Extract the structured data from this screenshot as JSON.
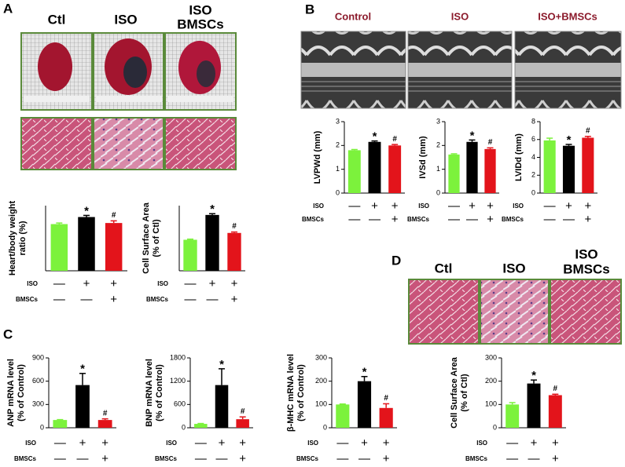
{
  "panels": [
    "A",
    "B",
    "C",
    "D"
  ],
  "image_labels": {
    "A": [
      "Ctl",
      "ISO",
      "ISO",
      "BMSCs"
    ],
    "B": [
      "Control",
      "ISO",
      "ISO+BMSCs"
    ],
    "D": [
      "Ctl",
      "ISO",
      "ISO",
      "BMSCs"
    ]
  },
  "chart_data": [
    {
      "type": "bar",
      "ylabel": [
        "Heart/body weight",
        "ratio (%)"
      ],
      "ylim": [
        0,
        6
      ],
      "values": [
        4.3,
        4.95,
        4.4
      ],
      "errors": [
        0.1,
        0.15,
        0.2
      ],
      "colors": [
        "#7cf23c",
        "#000000",
        "#e3141b"
      ],
      "bar_labels": [
        null,
        "*",
        "#"
      ],
      "conditions": [
        {
          "name": "ISO",
          "signs": [
            "—",
            "+",
            "+"
          ]
        },
        {
          "name": "BMSCs",
          "signs": [
            "—",
            "—",
            "+"
          ]
        }
      ]
    },
    {
      "type": "bar",
      "ylabel": [
        "Cell Surface Area",
        "(% of Ctl)"
      ],
      "ylim": [
        0,
        210
      ],
      "values": [
        100,
        180,
        122
      ],
      "errors": [
        2,
        4,
        3
      ],
      "colors": [
        "#7cf23c",
        "#000000",
        "#e3141b"
      ],
      "bar_labels": [
        null,
        "*",
        "#"
      ],
      "conditions": [
        {
          "name": "ISO",
          "signs": [
            "—",
            "+",
            "+"
          ]
        },
        {
          "name": "BMSCs",
          "signs": [
            "—",
            "—",
            "+"
          ]
        }
      ]
    },
    {
      "type": "bar",
      "ylabel": [
        "LVPWd (mm)"
      ],
      "ylim": [
        0,
        3
      ],
      "yticks": [
        0,
        1,
        2,
        3
      ],
      "values": [
        1.8,
        2.15,
        2.0
      ],
      "errors": [
        0.03,
        0.04,
        0.04
      ],
      "colors": [
        "#7cf23c",
        "#000000",
        "#e3141b"
      ],
      "bar_labels": [
        null,
        "*",
        "#"
      ],
      "conditions": [
        {
          "name": "ISO",
          "signs": [
            "—",
            "+",
            "+"
          ]
        },
        {
          "name": "BMSCs",
          "signs": [
            "—",
            "—",
            "+"
          ]
        }
      ]
    },
    {
      "type": "bar",
      "ylabel": [
        "IVSd (mm)"
      ],
      "ylim": [
        0,
        3
      ],
      "yticks": [
        0,
        1,
        2,
        3
      ],
      "values": [
        1.62,
        2.15,
        1.85
      ],
      "errors": [
        0.03,
        0.08,
        0.05
      ],
      "colors": [
        "#7cf23c",
        "#000000",
        "#e3141b"
      ],
      "bar_labels": [
        null,
        "*",
        "#"
      ],
      "conditions": [
        {
          "name": "ISO",
          "signs": [
            "—",
            "+",
            "+"
          ]
        },
        {
          "name": "BMSCs",
          "signs": [
            "—",
            "—",
            "+"
          ]
        }
      ]
    },
    {
      "type": "bar",
      "ylabel": [
        "LVIDd (mm)"
      ],
      "ylim": [
        0,
        8
      ],
      "yticks": [
        0,
        2,
        4,
        6,
        8
      ],
      "values": [
        5.9,
        5.3,
        6.2
      ],
      "errors": [
        0.25,
        0.15,
        0.15
      ],
      "colors": [
        "#7cf23c",
        "#000000",
        "#e3141b"
      ],
      "bar_labels": [
        null,
        "*",
        "#"
      ],
      "conditions": [
        {
          "name": "ISO",
          "signs": [
            "—",
            "+",
            "+"
          ]
        },
        {
          "name": "BMSCs",
          "signs": [
            "—",
            "—",
            "+"
          ]
        }
      ]
    },
    {
      "type": "bar",
      "ylabel": [
        "ANP mRNA level",
        "(% of Control)"
      ],
      "ylim": [
        0,
        900
      ],
      "yticks": [
        0,
        300,
        600,
        900
      ],
      "values": [
        100,
        550,
        100
      ],
      "errors": [
        5,
        150,
        15
      ],
      "colors": [
        "#7cf23c",
        "#000000",
        "#e3141b"
      ],
      "bar_labels": [
        null,
        "*",
        "#"
      ],
      "conditions": [
        {
          "name": "ISO",
          "signs": [
            "—",
            "+",
            "+"
          ]
        },
        {
          "name": "BMSCs",
          "signs": [
            "—",
            "—",
            "+"
          ]
        }
      ]
    },
    {
      "type": "bar",
      "ylabel": [
        "BNP mRNA level",
        "(% of Control)"
      ],
      "ylim": [
        0,
        1800
      ],
      "yticks": [
        0,
        600,
        1200,
        1800
      ],
      "values": [
        100,
        1100,
        220
      ],
      "errors": [
        10,
        420,
        60
      ],
      "colors": [
        "#7cf23c",
        "#000000",
        "#e3141b"
      ],
      "bar_labels": [
        null,
        "*",
        "#"
      ],
      "conditions": [
        {
          "name": "ISO",
          "signs": [
            "—",
            "+",
            "+"
          ]
        },
        {
          "name": "BMSCs",
          "signs": [
            "—",
            "—",
            "+"
          ]
        }
      ]
    },
    {
      "type": "bar",
      "ylabel": [
        "β-MHC mRNA level",
        "(% of Control)"
      ],
      "ylim": [
        0,
        300
      ],
      "yticks": [
        0,
        100,
        200,
        300
      ],
      "values": [
        100,
        200,
        85
      ],
      "errors": [
        2,
        20,
        18
      ],
      "colors": [
        "#7cf23c",
        "#000000",
        "#e3141b"
      ],
      "bar_labels": [
        null,
        "*",
        "#"
      ],
      "conditions": [
        {
          "name": "ISO",
          "signs": [
            "—",
            "+",
            "+"
          ]
        },
        {
          "name": "BMSCs",
          "signs": [
            "—",
            "—",
            "+"
          ]
        }
      ]
    },
    {
      "type": "bar",
      "ylabel": [
        "Cell Surface Area",
        "(% of Ctl)"
      ],
      "ylim": [
        0,
        300
      ],
      "yticks": [
        0,
        100,
        200,
        300
      ],
      "values": [
        100,
        190,
        140
      ],
      "errors": [
        8,
        15,
        4
      ],
      "colors": [
        "#7cf23c",
        "#000000",
        "#e3141b"
      ],
      "bar_labels": [
        null,
        "*",
        "#"
      ],
      "conditions": [
        {
          "name": "ISO",
          "signs": [
            "—",
            "+",
            "+"
          ]
        },
        {
          "name": "BMSCs",
          "signs": [
            "—",
            "—",
            "+"
          ]
        }
      ]
    }
  ]
}
